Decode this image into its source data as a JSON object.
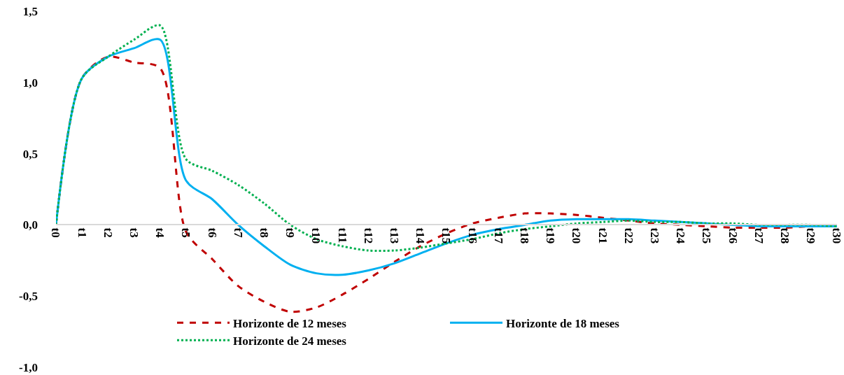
{
  "chart_data": {
    "type": "line",
    "categories": [
      "t0",
      "t1",
      "t2",
      "t3",
      "t4",
      "t5",
      "t6",
      "t7",
      "t8",
      "t9",
      "t10",
      "t11",
      "t12",
      "t13",
      "t14",
      "t15",
      "t16",
      "t17",
      "t18",
      "t19",
      "t20",
      "t21",
      "t22",
      "t23",
      "t24",
      "t25",
      "t26",
      "t27",
      "t28",
      "t29",
      "t30"
    ],
    "series": [
      {
        "name": "Horizonte de 12 meses",
        "color": "#c00000",
        "line_style": "dashed",
        "values": [
          0,
          1.03,
          1.18,
          1.14,
          1.1,
          -0.05,
          -0.24,
          -0.43,
          -0.54,
          -0.61,
          -0.58,
          -0.49,
          -0.38,
          -0.26,
          -0.15,
          -0.06,
          0.01,
          0.05,
          0.08,
          0.08,
          0.07,
          0.05,
          0.03,
          0.01,
          0.0,
          -0.01,
          -0.02,
          -0.02,
          -0.02,
          -0.01,
          -0.01
        ]
      },
      {
        "name": "Horizonte de 18 meses",
        "color": "#00b0f0",
        "line_style": "solid",
        "values": [
          0,
          1.03,
          1.18,
          1.24,
          1.3,
          0.31,
          0.18,
          0.0,
          -0.15,
          -0.28,
          -0.34,
          -0.35,
          -0.32,
          -0.27,
          -0.2,
          -0.13,
          -0.07,
          -0.03,
          0.0,
          0.03,
          0.04,
          0.04,
          0.04,
          0.03,
          0.02,
          0.01,
          0.0,
          -0.01,
          -0.01,
          -0.01,
          -0.01
        ]
      },
      {
        "name": "Horizonte de 24 meses",
        "color": "#00b050",
        "line_style": "dotted",
        "values": [
          0,
          1.03,
          1.18,
          1.3,
          1.4,
          0.46,
          0.38,
          0.28,
          0.15,
          0.0,
          -0.1,
          -0.15,
          -0.18,
          -0.18,
          -0.16,
          -0.13,
          -0.1,
          -0.06,
          -0.03,
          -0.01,
          0.01,
          0.02,
          0.03,
          0.02,
          0.02,
          0.01,
          0.01,
          0.0,
          0.0,
          0.0,
          -0.01
        ]
      }
    ],
    "ylim": [
      -1.0,
      1.5
    ],
    "yticks": [
      {
        "value": -1.0,
        "label": "-1,0"
      },
      {
        "value": -0.5,
        "label": "-0,5"
      },
      {
        "value": 0.0,
        "label": "0,0"
      },
      {
        "value": 0.5,
        "label": "0,5"
      },
      {
        "value": 1.0,
        "label": "1,0"
      },
      {
        "value": 1.5,
        "label": "1,5"
      }
    ],
    "legend": "bottom",
    "marker": "none"
  }
}
